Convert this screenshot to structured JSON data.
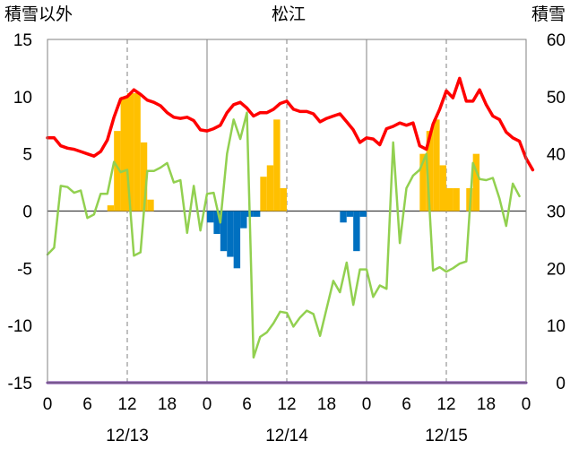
{
  "chart_data": {
    "type": "bar+line",
    "title": "松江",
    "ylabel_left": "積雪以外",
    "ylabel_right": "積雪",
    "ylim_left": [
      -15,
      15
    ],
    "ylim_right": [
      0,
      60
    ],
    "yticks_left": [
      "15",
      "10",
      "5",
      "0",
      "-5",
      "-10",
      "-15"
    ],
    "yticks_right": [
      "60",
      "50",
      "40",
      "30",
      "20",
      "10",
      "0"
    ],
    "xticks": [
      "0",
      "6",
      "12",
      "18",
      "0",
      "6",
      "12",
      "18",
      "0",
      "6",
      "12",
      "18",
      "0"
    ],
    "date_labels": [
      "12/13",
      "12/14",
      "12/15"
    ],
    "x_range_hours": [
      0,
      72
    ],
    "grid": "dashed vertical lines at hour 12 of each day; solid vertical lines at day boundaries",
    "colors": {
      "temperature": "#ff0000",
      "secondary_line": "#92d050",
      "positive_bars": "#ffc000",
      "negative_bars": "#0070c0",
      "baseline": "#7030a0"
    },
    "series": [
      {
        "kind": "line",
        "color": "#ff0000",
        "axis": "left",
        "values": [
          6.4,
          6.4,
          5.7,
          5.5,
          5.4,
          5.2,
          5.0,
          4.8,
          5.2,
          6.2,
          8.2,
          9.8,
          10.0,
          10.6,
          10.2,
          9.7,
          9.5,
          9.2,
          8.6,
          8.2,
          8.1,
          8.2,
          7.9,
          7.1,
          7.0,
          7.2,
          7.5,
          8.6,
          9.3,
          9.5,
          9.0,
          8.3,
          8.6,
          8.6,
          8.9,
          9.4,
          9.6,
          8.9,
          8.7,
          8.7,
          8.5,
          7.8,
          8.1,
          8.3,
          8.5,
          7.8,
          7.1,
          6.0,
          6.4,
          6.3,
          5.8,
          7.2,
          7.4,
          7.7,
          7.5,
          7.7,
          5.7,
          5.4,
          7.6,
          8.9,
          10.5,
          9.9,
          11.6,
          9.6,
          9.6,
          10.6,
          9.3,
          8.3,
          8.0,
          6.9,
          6.4,
          6.1,
          4.6,
          3.6
        ]
      },
      {
        "kind": "line",
        "color": "#92d050",
        "axis": "left",
        "values": [
          -3.8,
          -3.2,
          2.2,
          2.1,
          1.6,
          1.8,
          -0.6,
          -0.3,
          1.5,
          1.5,
          4.3,
          3.4,
          3.6,
          -3.9,
          -3.6,
          3.5,
          3.5,
          3.8,
          4.2,
          2.5,
          2.7,
          -1.9,
          2.2,
          -1.7,
          1.5,
          1.6,
          -1.0,
          5.0,
          8.0,
          6.3,
          8.6,
          -12.8,
          -11.0,
          -10.6,
          -9.8,
          -8.8,
          -8.9,
          -10.1,
          -9.3,
          -8.7,
          -9.0,
          -10.9,
          -8.5,
          -6.1,
          -7.1,
          -4.5,
          -8.2,
          -5.1,
          -5.1,
          -7.5,
          -6.5,
          -6.8,
          6.0,
          -2.8,
          2.0,
          3.1,
          3.6,
          5.0,
          -5.2,
          -4.9,
          -5.3,
          -5.0,
          -4.6,
          -4.4,
          4.2,
          2.8,
          2.7,
          2.9,
          1.1,
          -1.3,
          2.4,
          1.3
        ]
      },
      {
        "kind": "bar",
        "axis": "left",
        "bars": [
          {
            "hour": 9,
            "value": 0.5
          },
          {
            "hour": 10,
            "value": 7.0
          },
          {
            "hour": 11,
            "value": 10.0
          },
          {
            "hour": 12,
            "value": 10.3
          },
          {
            "hour": 13,
            "value": 10.3
          },
          {
            "hour": 14,
            "value": 6.0
          },
          {
            "hour": 15,
            "value": 1.0
          },
          {
            "hour": 24,
            "value": -1.0
          },
          {
            "hour": 25,
            "value": -2.0
          },
          {
            "hour": 26,
            "value": -3.5
          },
          {
            "hour": 27,
            "value": -4.0
          },
          {
            "hour": 28,
            "value": -5.0
          },
          {
            "hour": 29,
            "value": -1.5
          },
          {
            "hour": 30,
            "value": -0.5
          },
          {
            "hour": 31,
            "value": -0.5
          },
          {
            "hour": 32,
            "value": 3.0
          },
          {
            "hour": 33,
            "value": 4.0
          },
          {
            "hour": 34,
            "value": 8.0
          },
          {
            "hour": 35,
            "value": 2.0
          },
          {
            "hour": 44,
            "value": -1.0
          },
          {
            "hour": 45,
            "value": -0.5
          },
          {
            "hour": 46,
            "value": -3.5
          },
          {
            "hour": 47,
            "value": -0.5
          },
          {
            "hour": 56,
            "value": 5.0
          },
          {
            "hour": 57,
            "value": 7.0
          },
          {
            "hour": 58,
            "value": 8.0
          },
          {
            "hour": 59,
            "value": 4.0
          },
          {
            "hour": 60,
            "value": 2.0
          },
          {
            "hour": 61,
            "value": 2.0
          },
          {
            "hour": 63,
            "value": 2.0
          },
          {
            "hour": 64,
            "value": 5.0
          }
        ]
      },
      {
        "kind": "line",
        "color": "#7030a0",
        "axis": "right",
        "values": [
          0,
          0
        ]
      }
    ]
  }
}
